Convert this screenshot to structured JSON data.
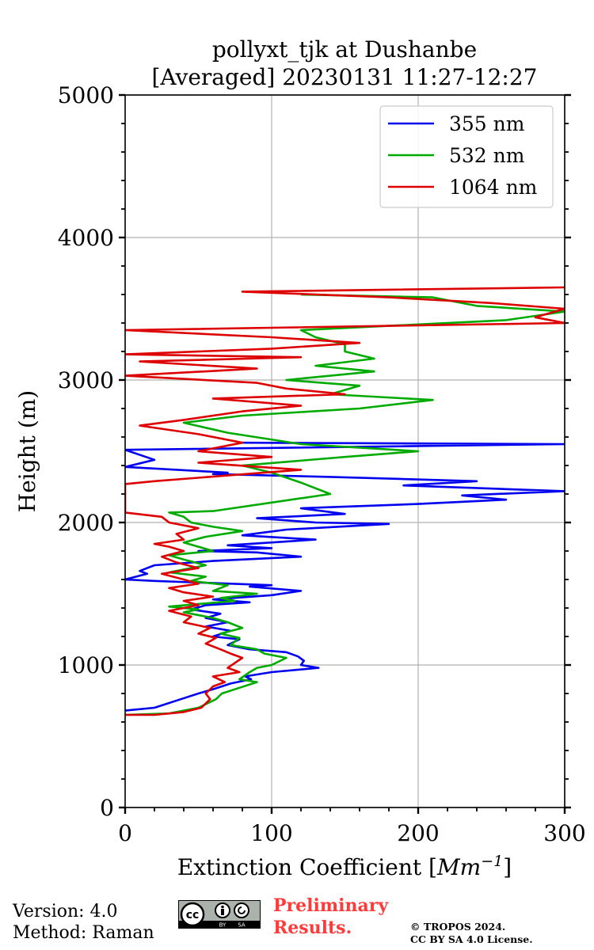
{
  "chart_data": {
    "type": "line",
    "title": [
      "pollyxt_tjk at Dushanbe",
      "[Averaged] 20230131 11:27-12:27"
    ],
    "xlabel": "Extinction Coefficient [",
    "xlabel_unit": "Mm",
    "xlabel_exp": "−1",
    "xlabel_close": "]",
    "ylabel": "Height (m)",
    "xlim": [
      0,
      300
    ],
    "ylim": [
      0,
      5000
    ],
    "xticks": [
      0,
      100,
      200,
      300
    ],
    "yticks": [
      0,
      1000,
      2000,
      3000,
      4000,
      5000
    ],
    "grid": true,
    "legend_position": "top-right",
    "series": [
      {
        "name": "355 nm",
        "color": "#0000ee",
        "points": [
          [
            0,
            680
          ],
          [
            20,
            700
          ],
          [
            38,
            760
          ],
          [
            50,
            800
          ],
          [
            60,
            830
          ],
          [
            72,
            870
          ],
          [
            86,
            900
          ],
          [
            82,
            920
          ],
          [
            100,
            950
          ],
          [
            132,
            980
          ],
          [
            120,
            1000
          ],
          [
            122,
            1030
          ],
          [
            118,
            1060
          ],
          [
            110,
            1090
          ],
          [
            85,
            1110
          ],
          [
            70,
            1140
          ],
          [
            78,
            1180
          ],
          [
            60,
            1200
          ],
          [
            72,
            1240
          ],
          [
            55,
            1270
          ],
          [
            70,
            1300
          ],
          [
            55,
            1330
          ],
          [
            65,
            1360
          ],
          [
            45,
            1390
          ],
          [
            55,
            1420
          ],
          [
            85,
            1440
          ],
          [
            60,
            1460
          ],
          [
            100,
            1490
          ],
          [
            120,
            1520
          ],
          [
            85,
            1550
          ],
          [
            100,
            1560
          ],
          [
            20,
            1590
          ],
          [
            0,
            1600
          ],
          [
            15,
            1640
          ],
          [
            10,
            1660
          ],
          [
            20,
            1700
          ],
          [
            60,
            1730
          ],
          [
            120,
            1760
          ],
          [
            90,
            1790
          ],
          [
            50,
            1800
          ],
          [
            100,
            1820
          ],
          [
            70,
            1840
          ],
          [
            130,
            1880
          ],
          [
            80,
            1910
          ],
          [
            95,
            1930
          ],
          [
            110,
            1950
          ],
          [
            180,
            1990
          ],
          [
            130,
            2000
          ],
          [
            90,
            2030
          ],
          [
            150,
            2060
          ],
          [
            120,
            2100
          ],
          [
            200,
            2130
          ],
          [
            260,
            2160
          ],
          [
            230,
            2190
          ],
          [
            300,
            2220
          ],
          [
            190,
            2260
          ],
          [
            240,
            2290
          ],
          [
            140,
            2320
          ],
          [
            60,
            2340
          ],
          [
            70,
            2350
          ],
          [
            0,
            2390
          ],
          [
            20,
            2440
          ],
          [
            0,
            2510
          ],
          [
            300,
            2550
          ],
          [
            80,
            2560
          ]
        ]
      },
      {
        "name": "532 nm",
        "color": "#00aa00",
        "points": [
          [
            0,
            650
          ],
          [
            30,
            660
          ],
          [
            50,
            700
          ],
          [
            62,
            760
          ],
          [
            66,
            800
          ],
          [
            78,
            840
          ],
          [
            90,
            880
          ],
          [
            78,
            900
          ],
          [
            85,
            950
          ],
          [
            90,
            980
          ],
          [
            100,
            1000
          ],
          [
            110,
            1050
          ],
          [
            95,
            1080
          ],
          [
            90,
            1110
          ],
          [
            72,
            1140
          ],
          [
            78,
            1190
          ],
          [
            65,
            1220
          ],
          [
            80,
            1260
          ],
          [
            70,
            1300
          ],
          [
            60,
            1330
          ],
          [
            40,
            1370
          ],
          [
            50,
            1390
          ],
          [
            30,
            1410
          ],
          [
            75,
            1450
          ],
          [
            65,
            1470
          ],
          [
            90,
            1500
          ],
          [
            60,
            1520
          ],
          [
            70,
            1560
          ],
          [
            45,
            1590
          ],
          [
            55,
            1620
          ],
          [
            30,
            1650
          ],
          [
            55,
            1700
          ],
          [
            40,
            1740
          ],
          [
            30,
            1770
          ],
          [
            60,
            1800
          ],
          [
            50,
            1830
          ],
          [
            40,
            1860
          ],
          [
            55,
            1900
          ],
          [
            80,
            1940
          ],
          [
            60,
            1970
          ],
          [
            45,
            2000
          ],
          [
            40,
            2040
          ],
          [
            30,
            2070
          ],
          [
            60,
            2080
          ],
          [
            140,
            2200
          ],
          [
            120,
            2280
          ],
          [
            100,
            2350
          ],
          [
            80,
            2400
          ],
          [
            150,
            2460
          ],
          [
            200,
            2500
          ],
          [
            120,
            2550
          ],
          [
            70,
            2630
          ],
          [
            40,
            2700
          ],
          [
            80,
            2750
          ],
          [
            160,
            2800
          ],
          [
            210,
            2860
          ],
          [
            140,
            2900
          ],
          [
            160,
            2960
          ],
          [
            110,
            3000
          ],
          [
            170,
            3060
          ],
          [
            130,
            3100
          ],
          [
            170,
            3150
          ],
          [
            150,
            3200
          ],
          [
            150,
            3250
          ],
          [
            130,
            3300
          ],
          [
            120,
            3350
          ],
          [
            260,
            3420
          ],
          [
            300,
            3480
          ],
          [
            240,
            3520
          ],
          [
            210,
            3580
          ],
          [
            120,
            3600
          ]
        ]
      },
      {
        "name": "1064 nm",
        "color": "#dd0000",
        "points": [
          [
            0,
            650
          ],
          [
            20,
            650
          ],
          [
            40,
            670
          ],
          [
            52,
            700
          ],
          [
            58,
            760
          ],
          [
            55,
            800
          ],
          [
            60,
            850
          ],
          [
            68,
            880
          ],
          [
            60,
            920
          ],
          [
            78,
            950
          ],
          [
            70,
            980
          ],
          [
            80,
            1050
          ],
          [
            72,
            1080
          ],
          [
            65,
            1110
          ],
          [
            55,
            1150
          ],
          [
            62,
            1190
          ],
          [
            50,
            1220
          ],
          [
            58,
            1260
          ],
          [
            40,
            1300
          ],
          [
            45,
            1340
          ],
          [
            30,
            1380
          ],
          [
            50,
            1420
          ],
          [
            40,
            1450
          ],
          [
            60,
            1480
          ],
          [
            40,
            1510
          ],
          [
            30,
            1540
          ],
          [
            50,
            1570
          ],
          [
            40,
            1600
          ],
          [
            25,
            1640
          ],
          [
            50,
            1680
          ],
          [
            35,
            1720
          ],
          [
            25,
            1760
          ],
          [
            40,
            1800
          ],
          [
            30,
            1830
          ],
          [
            20,
            1850
          ],
          [
            40,
            1880
          ],
          [
            35,
            1920
          ],
          [
            50,
            1960
          ],
          [
            30,
            2000
          ],
          [
            25,
            2040
          ],
          [
            0,
            2070
          ],
          [
            0,
            2270
          ],
          [
            20,
            2290
          ],
          [
            70,
            2330
          ],
          [
            120,
            2370
          ],
          [
            50,
            2420
          ],
          [
            100,
            2460
          ],
          [
            50,
            2500
          ],
          [
            80,
            2560
          ],
          [
            50,
            2620
          ],
          [
            10,
            2680
          ],
          [
            40,
            2720
          ],
          [
            80,
            2780
          ],
          [
            120,
            2820
          ],
          [
            60,
            2870
          ],
          [
            150,
            2900
          ],
          [
            110,
            2940
          ],
          [
            90,
            2980
          ],
          [
            0,
            3030
          ],
          [
            90,
            3080
          ],
          [
            10,
            3130
          ],
          [
            120,
            3160
          ],
          [
            0,
            3180
          ],
          [
            100,
            3220
          ],
          [
            160,
            3260
          ],
          [
            100,
            3300
          ],
          [
            0,
            3350
          ],
          [
            300,
            3400
          ],
          [
            280,
            3440
          ],
          [
            300,
            3500
          ],
          [
            250,
            3540
          ],
          [
            180,
            3580
          ],
          [
            80,
            3620
          ],
          [
            300,
            3650
          ]
        ]
      }
    ]
  },
  "footer": {
    "version": "Version: 4.0",
    "method": "Method: Raman",
    "license_badge": "cc-by-sa",
    "prelim_line1": "Preliminary",
    "prelim_line2": "Results.",
    "copyright_line1": "© TROPOS 2024.",
    "copyright_line2": "CC BY SA 4.0 License."
  }
}
